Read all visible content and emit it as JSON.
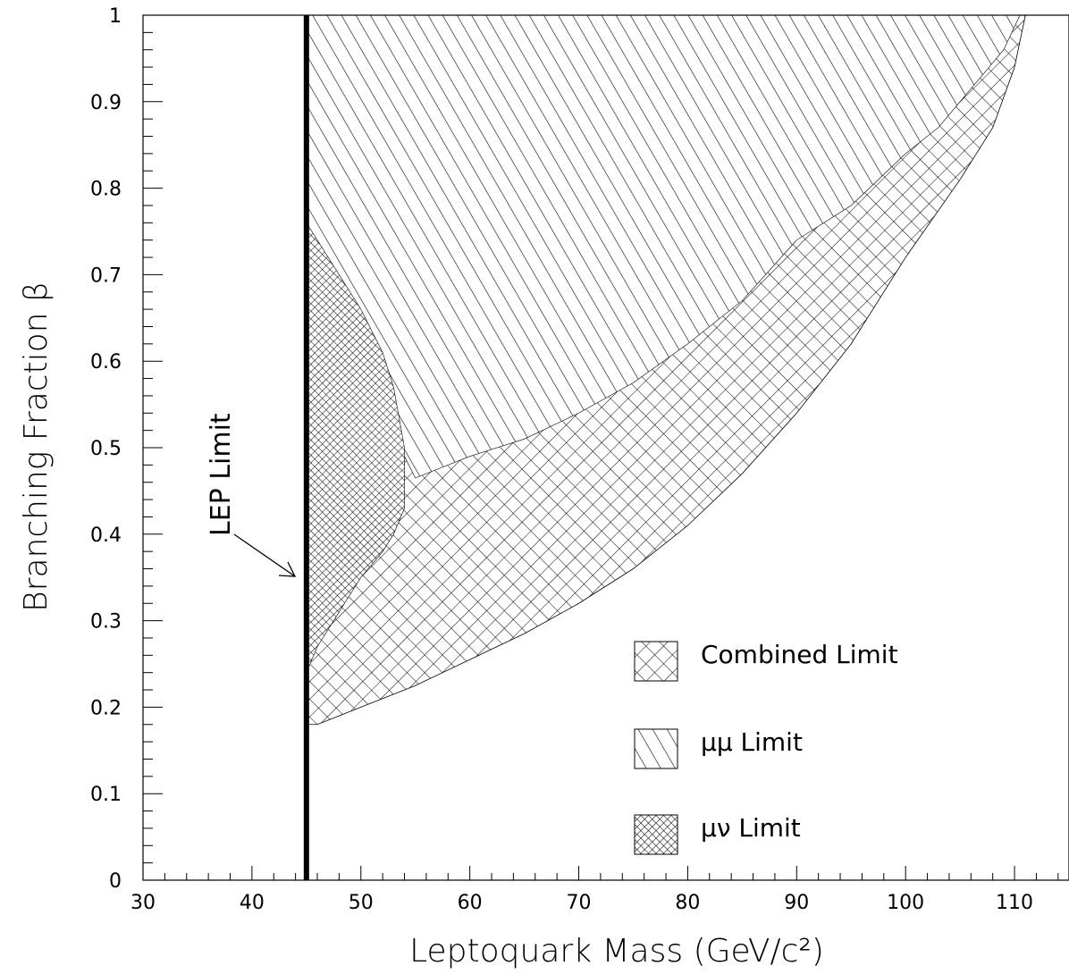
{
  "chart_data": {
    "type": "area",
    "xlabel": "Leptoquark Mass (GeV/c²)",
    "ylabel": "Branching Fraction β",
    "xlim": [
      30,
      115
    ],
    "ylim": [
      0,
      1
    ],
    "x_ticks": [
      "30",
      "40",
      "50",
      "60",
      "70",
      "80",
      "90",
      "100",
      "110"
    ],
    "y_ticks": [
      "0",
      "0.1",
      "0.2",
      "0.3",
      "0.4",
      "0.5",
      "0.6",
      "0.7",
      "0.8",
      "0.9",
      "1"
    ],
    "lep_limit": {
      "label": "LEP Limit",
      "mass": 45
    },
    "legend": {
      "placement": "bottom-right",
      "entries": [
        {
          "label": "Combined Limit",
          "pattern": "crosshatch"
        },
        {
          "label": "μμ Limit",
          "pattern": "diagonal"
        },
        {
          "label": "μν Limit",
          "pattern": "dense-crosshatch"
        }
      ]
    },
    "series": [
      {
        "name": "Combined Limit",
        "boundary": {
          "x": [
            45,
            46,
            48,
            50,
            55,
            60,
            65,
            70,
            75,
            80,
            85,
            90,
            95,
            100,
            105,
            108,
            110,
            111
          ],
          "y": [
            0.18,
            0.18,
            0.19,
            0.2,
            0.225,
            0.255,
            0.285,
            0.32,
            0.36,
            0.41,
            0.47,
            0.54,
            0.62,
            0.72,
            0.81,
            0.87,
            0.94,
            1.0
          ]
        }
      },
      {
        "name": "μμ Limit",
        "boundary": {
          "x": [
            45,
            52,
            55,
            60,
            65,
            70,
            75,
            80,
            85,
            90,
            95,
            100,
            103,
            105,
            107,
            109,
            110.5
          ],
          "y": [
            0.75,
            0.54,
            0.465,
            0.49,
            0.51,
            0.54,
            0.575,
            0.62,
            0.67,
            0.74,
            0.78,
            0.84,
            0.87,
            0.9,
            0.93,
            0.96,
            1.0
          ]
        }
      },
      {
        "name": "μν Limit",
        "boundary": {
          "x": [
            45,
            46,
            48,
            50,
            52,
            53,
            54,
            54,
            53,
            52,
            50,
            48,
            46,
            45
          ],
          "y": [
            0.76,
            0.74,
            0.7,
            0.66,
            0.61,
            0.57,
            0.5,
            0.43,
            0.4,
            0.38,
            0.35,
            0.31,
            0.27,
            0.24
          ]
        }
      }
    ]
  }
}
